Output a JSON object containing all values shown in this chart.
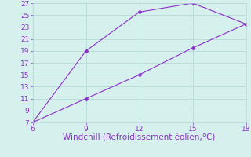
{
  "line1_x": [
    6,
    9,
    12,
    15,
    18
  ],
  "line1_y": [
    7,
    19,
    25.5,
    27,
    23.5
  ],
  "line2_x": [
    6,
    9,
    12,
    15,
    18
  ],
  "line2_y": [
    7,
    11,
    15,
    19.5,
    23.5
  ],
  "line_color": "#8B2FC8",
  "marker": "D",
  "marker_size": 2.5,
  "xlabel": "Windchill (Refroidissement éolien,°C)",
  "xlabel_color": "#8B2FC8",
  "xlim": [
    6,
    18
  ],
  "ylim": [
    7,
    27
  ],
  "xticks": [
    6,
    9,
    12,
    15,
    18
  ],
  "yticks": [
    7,
    9,
    11,
    13,
    15,
    17,
    19,
    21,
    23,
    25,
    27
  ],
  "background_color": "#d6f0ee",
  "grid_color": "#b8dbd8",
  "tick_color": "#8B2FC8",
  "tick_fontsize": 6.5,
  "xlabel_fontsize": 7.5,
  "linewidth": 0.8
}
